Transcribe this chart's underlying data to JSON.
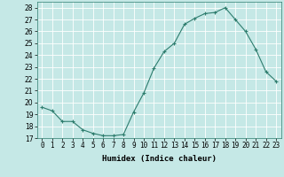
{
  "x": [
    0,
    1,
    2,
    3,
    4,
    5,
    6,
    7,
    8,
    9,
    10,
    11,
    12,
    13,
    14,
    15,
    16,
    17,
    18,
    19,
    20,
    21,
    22,
    23
  ],
  "y": [
    19.6,
    19.3,
    18.4,
    18.4,
    17.7,
    17.4,
    17.2,
    17.2,
    17.3,
    19.2,
    20.8,
    22.9,
    24.3,
    25.0,
    26.6,
    27.1,
    27.5,
    27.6,
    28.0,
    27.0,
    26.0,
    24.5,
    22.6,
    21.8
  ],
  "line_color": "#2e7d6e",
  "marker": "+",
  "xlabel": "Humidex (Indice chaleur)",
  "xlim": [
    -0.5,
    23.5
  ],
  "ylim": [
    17,
    28.5
  ],
  "yticks": [
    17,
    18,
    19,
    20,
    21,
    22,
    23,
    24,
    25,
    26,
    27,
    28
  ],
  "xticks": [
    0,
    1,
    2,
    3,
    4,
    5,
    6,
    7,
    8,
    9,
    10,
    11,
    12,
    13,
    14,
    15,
    16,
    17,
    18,
    19,
    20,
    21,
    22,
    23
  ],
  "bg_color": "#c5e8e6",
  "grid_color": "#ffffff",
  "tick_fontsize": 5.5,
  "xlabel_fontsize": 6.5
}
